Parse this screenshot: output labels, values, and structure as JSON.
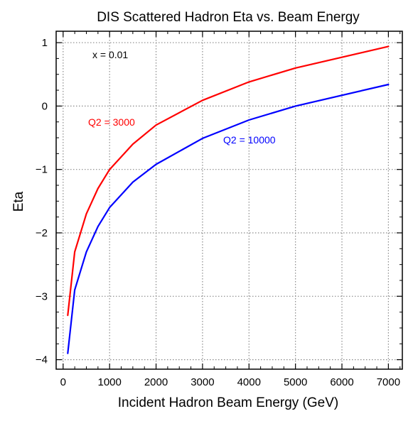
{
  "chart_data": {
    "type": "line",
    "title": "DIS Scattered Hadron Eta vs. Beam Energy",
    "xlabel": "Incident Hadron Beam Energy (GeV)",
    "ylabel": "Eta",
    "xlim": [
      -150,
      7300
    ],
    "ylim": [
      -4.15,
      1.18
    ],
    "x_ticks": [
      0,
      1000,
      2000,
      3000,
      4000,
      5000,
      6000,
      7000
    ],
    "y_ticks": [
      -4,
      -3,
      -2,
      -1,
      0,
      1
    ],
    "x_minor_step": 250,
    "y_minor_step": 0.25,
    "grid": true,
    "grid_style": "dotted",
    "annotation": "x = 0.01",
    "series": [
      {
        "name": "Q2 = 3000",
        "color": "#ff0000",
        "x": [
          100,
          250,
          500,
          750,
          1000,
          1500,
          2000,
          3000,
          4000,
          5000,
          7000
        ],
        "y": [
          -3.3,
          -2.3,
          -1.7,
          -1.3,
          -1.0,
          -0.6,
          -0.3,
          0.09,
          0.38,
          0.6,
          0.94
        ]
      },
      {
        "name": "Q2 = 10000",
        "color": "#0000ff",
        "x": [
          100,
          250,
          500,
          750,
          1000,
          1500,
          2000,
          3000,
          4000,
          5000,
          7000
        ],
        "y": [
          -3.9,
          -2.9,
          -2.3,
          -1.9,
          -1.6,
          -1.2,
          -0.92,
          -0.51,
          -0.22,
          0.0,
          0.34
        ]
      }
    ]
  }
}
